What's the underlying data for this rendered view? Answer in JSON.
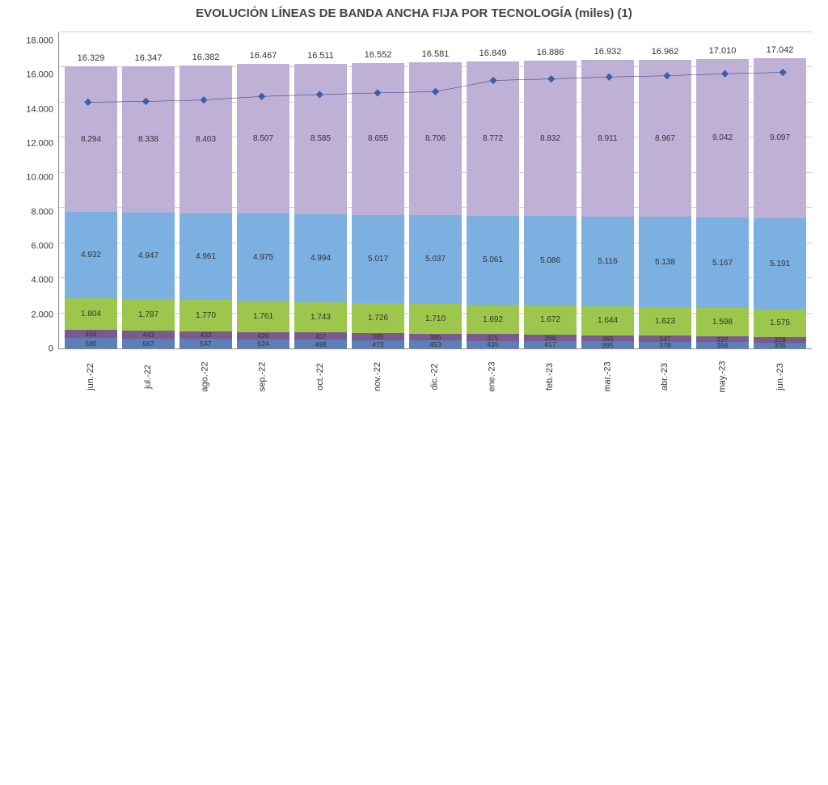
{
  "title": "EVOLUCIÓN LÍNEAS DE BANDA ANCHA FIJA POR TECNOLOGÍA (miles) (1)",
  "title_fontsize": 15,
  "chart": {
    "type": "stacked-bar-with-line",
    "background_color": "#ffffff",
    "grid_color": "#d0d0d0",
    "ylim": [
      0,
      18000
    ],
    "ytick_step": 2000,
    "ytick_labels": [
      "0",
      "2.000",
      "4.000",
      "6.000",
      "8.000",
      "10.000",
      "12.000",
      "14.000",
      "16.000",
      "18.000"
    ],
    "categories": [
      "jun.-22",
      "jul.-22",
      "ago.-22",
      "sep.-22",
      "oct.-22",
      "nov.-22",
      "dic.-22",
      "ene.-23",
      "feb.-23",
      "mar.-23",
      "abr.-23",
      "may.-23",
      "jun.-23"
    ],
    "series_colors": [
      "#5b7fb8",
      "#7a5a8f",
      "#9cc64c",
      "#7bb0e0",
      "#bfb0d6"
    ],
    "line_color": "#1f3a7a",
    "line_width": 2,
    "marker_style": "diamond",
    "marker_size": 7,
    "marker_color": "#3a5fa8",
    "value_fontsize": 10,
    "axis_fontsize": 11,
    "segments": [
      {
        "totals": [
          585,
          567,
          547,
          524,
          498,
          473,
          453,
          435,
          417,
          395,
          378,
          356,
          336
        ],
        "labels": [
          "585",
          "567",
          "547",
          "524",
          "498",
          "473",
          "453",
          "435",
          "417",
          "395",
          "378",
          "356",
          "336"
        ],
        "color": "#5b7fb8",
        "tiny": true
      },
      {
        "totals": [
          456,
          443,
          432,
          420,
          407,
          395,
          385,
          375,
          368,
          355,
          347,
          337,
          328
        ],
        "labels": [
          "456",
          "443",
          "432",
          "420",
          "407",
          "395",
          "385",
          "375",
          "368",
          "355",
          "347",
          "337",
          "328"
        ],
        "color": "#7a5a8f",
        "tiny": true
      },
      {
        "totals": [
          1804,
          1787,
          1770,
          1761,
          1743,
          1726,
          1710,
          1692,
          1672,
          1644,
          1623,
          1598,
          1575
        ],
        "labels": [
          "1.804",
          "1.787",
          "1.770",
          "1.761",
          "1.743",
          "1.726",
          "1.710",
          "1.692",
          "1.672",
          "1.644",
          "1.623",
          "1.598",
          "1.575"
        ],
        "color": "#9cc64c"
      },
      {
        "totals": [
          4932,
          4947,
          4961,
          4975,
          4994,
          5017,
          5037,
          5061,
          5086,
          5116,
          5138,
          5167,
          5191
        ],
        "labels": [
          "4.932",
          "4.947",
          "4.961",
          "4.975",
          "4.994",
          "5.017",
          "5.037",
          "5.061",
          "5.086",
          "5.116",
          "5.138",
          "5.167",
          "5.191"
        ],
        "color": "#7bb0e0"
      },
      {
        "totals": [
          8294,
          8338,
          8403,
          8507,
          8585,
          8655,
          8706,
          8772,
          8832,
          8911,
          8967,
          9042,
          9097
        ],
        "labels": [
          "8.294",
          "8.338",
          "8.403",
          "8.507",
          "8.585",
          "8.655",
          "8.706",
          "8.772",
          "8.832",
          "8.911",
          "8.967",
          "9.042",
          "9.097"
        ],
        "color": "#bfb0d6"
      }
    ],
    "line_values": [
      16329,
      16347,
      16382,
      16467,
      16511,
      16552,
      16581,
      16849,
      16886,
      16932,
      16962,
      17010,
      17042
    ],
    "line_labels": [
      "16.329",
      "16.347",
      "16.382",
      "16.467",
      "16.511",
      "16.552",
      "16.581",
      "16.849",
      "16.886",
      "16.932",
      "16.962",
      "17.010",
      "17.042"
    ]
  }
}
